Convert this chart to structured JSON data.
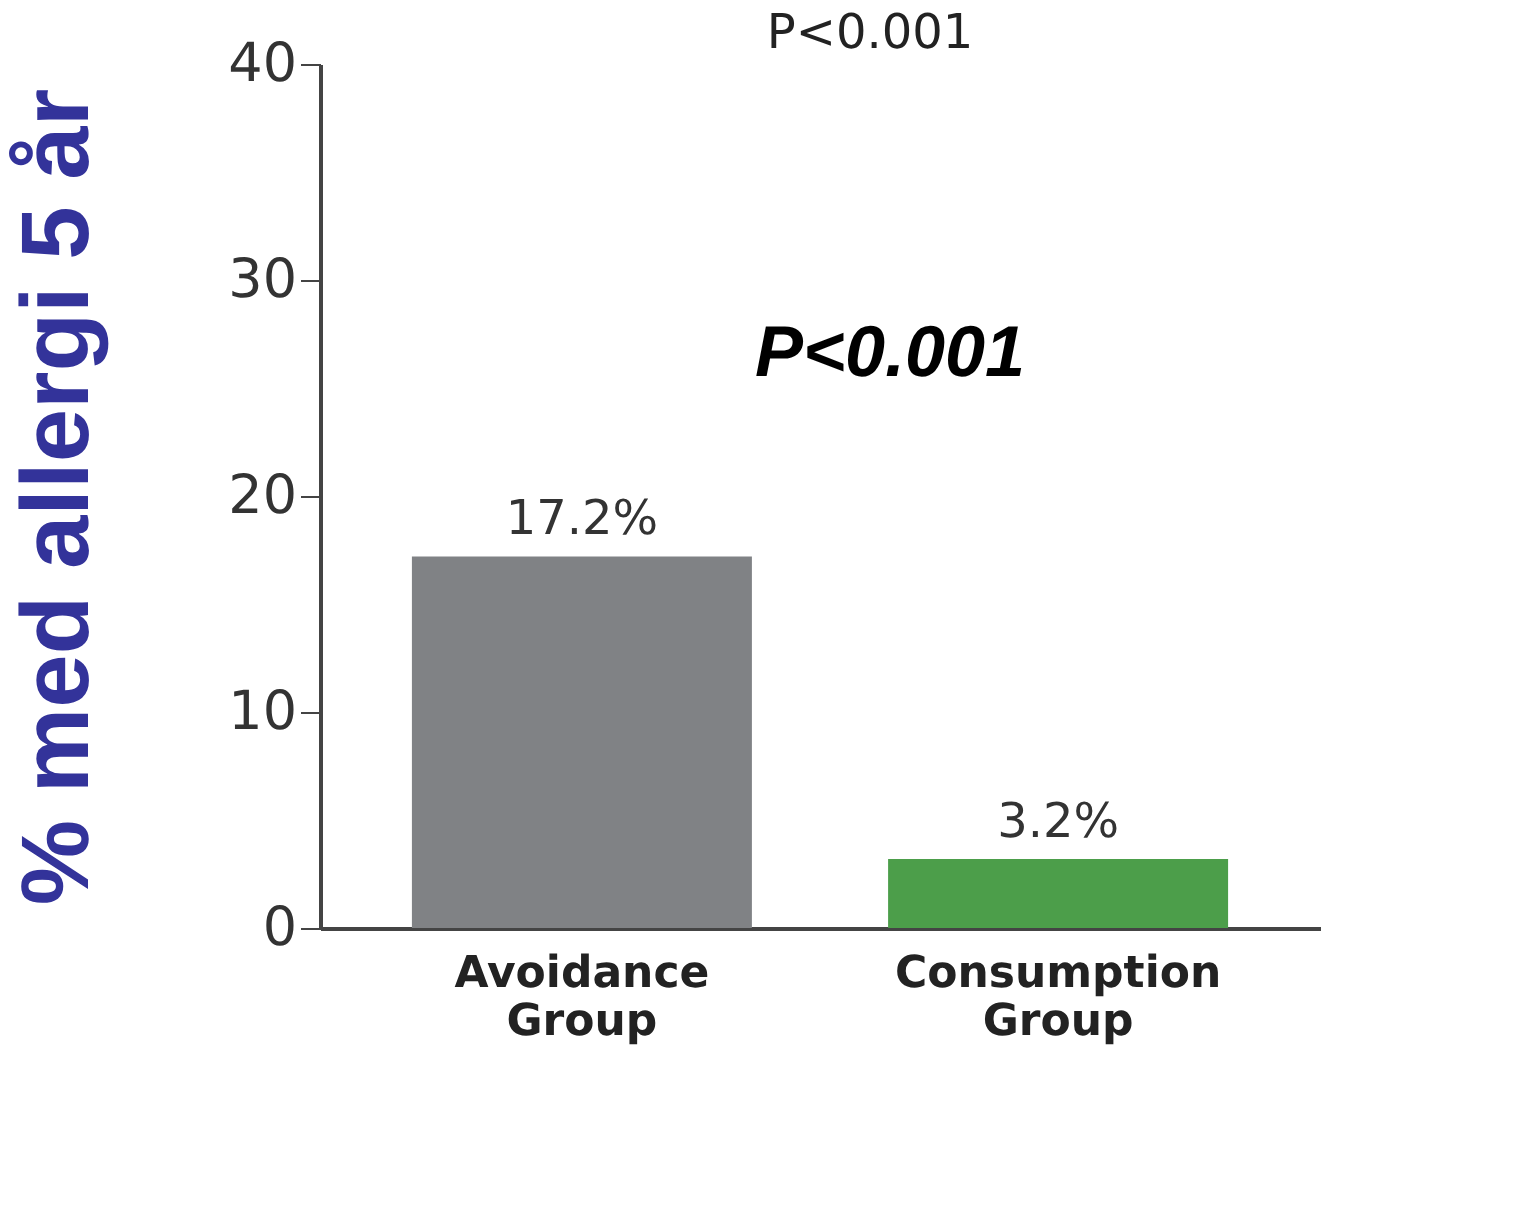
{
  "chart_data": {
    "type": "bar",
    "ylabel": "% med allergi 5 år",
    "categories": [
      "Avoidance Group",
      "Consumption Group"
    ],
    "values": [
      17.2,
      3.2
    ],
    "colors": [
      "#808285",
      "#4c9e4a"
    ],
    "value_labels": [
      "17.2%",
      "3.2%"
    ],
    "ylim": [
      0,
      40
    ],
    "yticks": [
      0,
      10,
      20,
      30,
      40
    ],
    "annotations": [
      "P<0.001",
      "P<0.001"
    ],
    "grid": false
  }
}
